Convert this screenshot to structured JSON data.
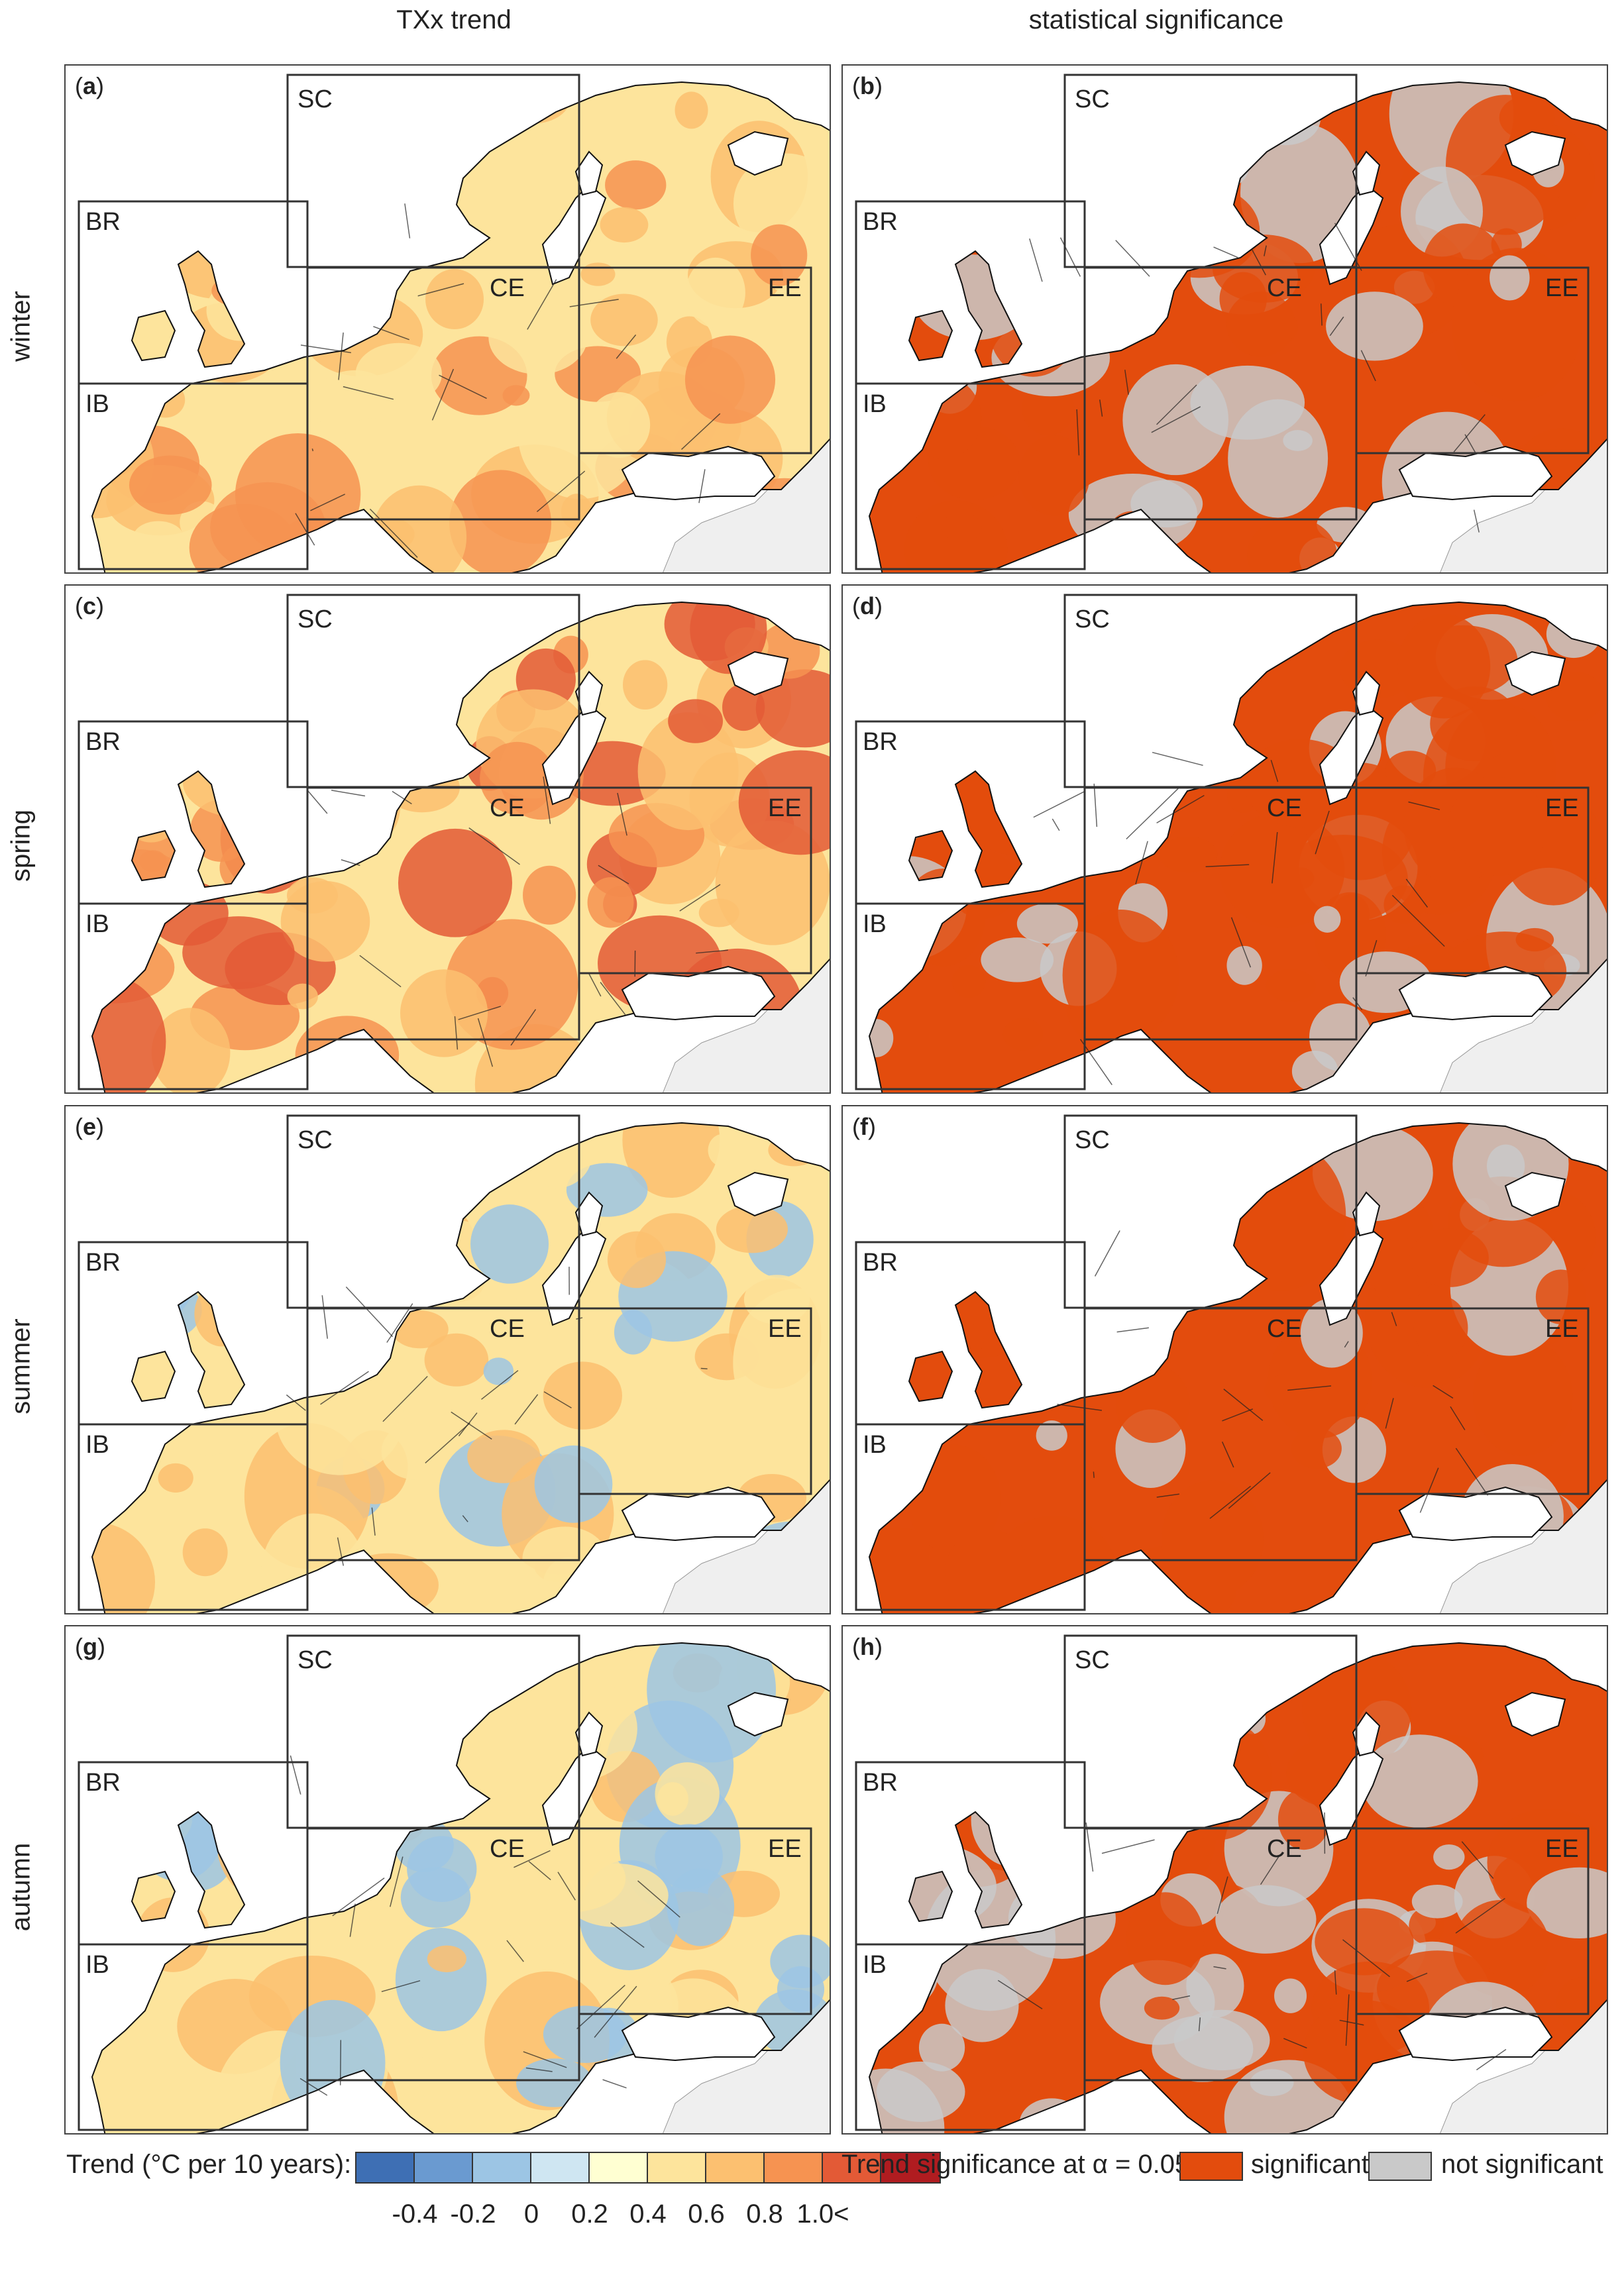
{
  "columns": {
    "left_title": "TXx trend",
    "right_title": "statistical significance"
  },
  "rows": [
    "winter",
    "spring",
    "summer",
    "autumn"
  ],
  "panels": [
    {
      "id": "a",
      "row": 0,
      "col": 0
    },
    {
      "id": "b",
      "row": 0,
      "col": 1
    },
    {
      "id": "c",
      "row": 1,
      "col": 0
    },
    {
      "id": "d",
      "row": 1,
      "col": 1
    },
    {
      "id": "e",
      "row": 2,
      "col": 0
    },
    {
      "id": "f",
      "row": 2,
      "col": 1
    },
    {
      "id": "g",
      "row": 3,
      "col": 0
    },
    {
      "id": "h",
      "row": 3,
      "col": 1
    }
  ],
  "regions": [
    "SC",
    "BR",
    "CE",
    "EE",
    "IB"
  ],
  "legend": {
    "trend_label": "Trend (°C per 10 years):",
    "trend_ticks": [
      "-0.4",
      "-0.2",
      "0",
      "0.2",
      "0.4",
      "0.6",
      "0.8",
      "1.0<"
    ],
    "trend_colors": [
      "#3e6fb4",
      "#6a9ad0",
      "#9cc5e4",
      "#cfe6f2",
      "#ffffd2",
      "#fde49c",
      "#fcc070",
      "#f69351",
      "#e35a36",
      "#b01c20"
    ],
    "significance_label": "Trend significance at α = 0.05:",
    "significant_label": "significant",
    "not_significant_label": "not significant",
    "significant_color": "#e34c0d",
    "not_significant_color": "#c9c9c9"
  }
}
